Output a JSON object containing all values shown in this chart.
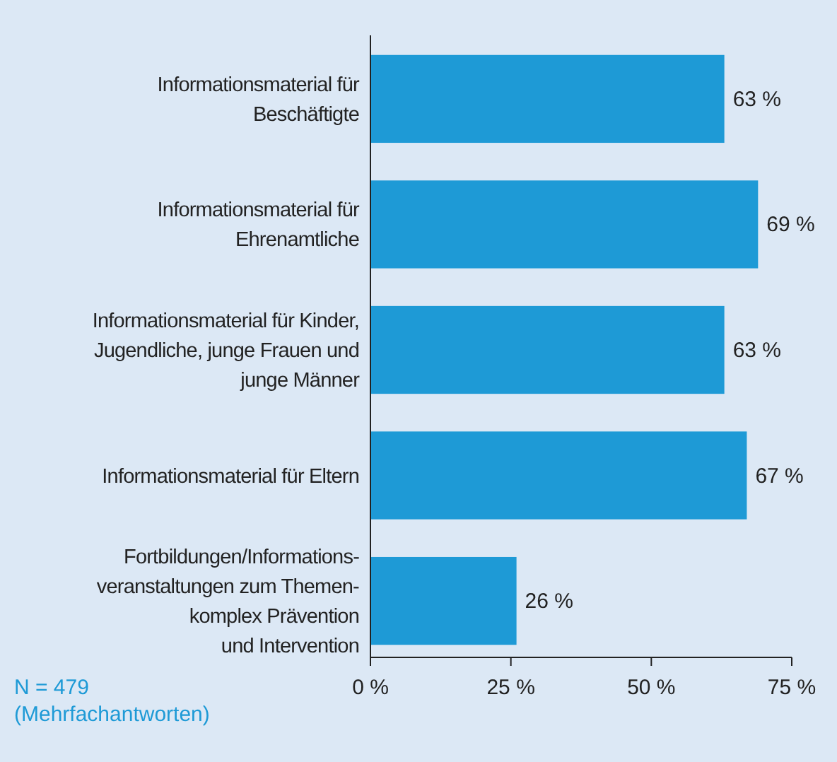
{
  "chart_data": {
    "type": "bar",
    "orientation": "horizontal",
    "categories": [
      "Informationsmaterial für\nBeschäftigte",
      "Informationsmaterial für\nEhrenamtliche",
      "Informationsmaterial für Kinder,\nJugendliche, junge Frauen und\njunge Männer",
      "Informationsmaterial für Eltern",
      "Fortbildungen/Informations-\nveranstaltungen zum Themen-\nkomplex Prävention\nund Intervention"
    ],
    "values": [
      63,
      69,
      63,
      67,
      26
    ],
    "value_labels": [
      "63 %",
      "69 %",
      "63 %",
      "67 %",
      "26 %"
    ],
    "color": "#1e9ad6",
    "xlim": [
      0,
      75
    ],
    "xticks": [
      {
        "value": 0,
        "label": "0 %"
      },
      {
        "value": 25,
        "label": "25 %"
      },
      {
        "value": 50,
        "label": "50 %"
      },
      {
        "value": 75,
        "label": "75 %"
      }
    ],
    "annotations": [
      "N = 479\n(Mehrfachantworten)"
    ],
    "grid": false
  }
}
